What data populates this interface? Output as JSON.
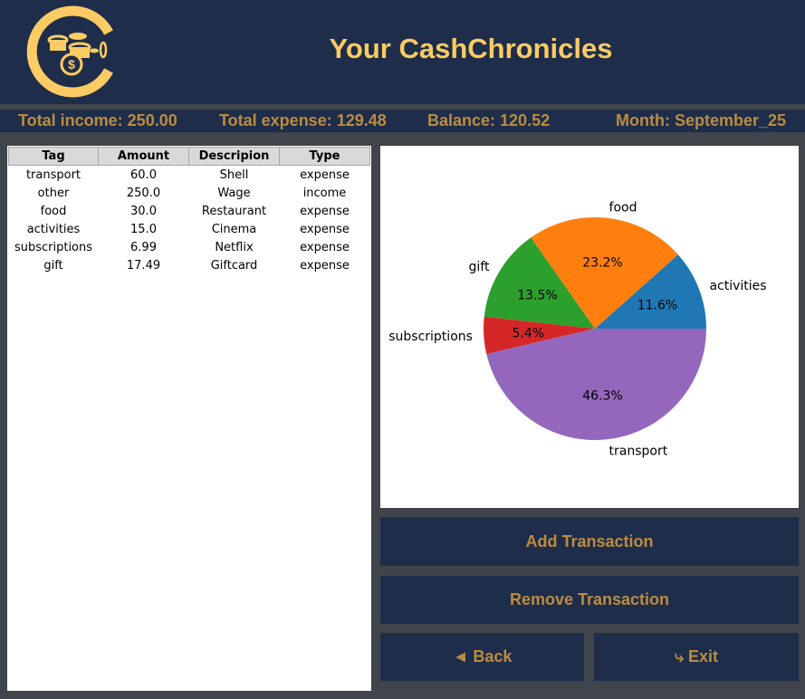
{
  "header": {
    "title": "Your CashChronicles",
    "logo_icon": "coins-dollar-logo"
  },
  "stats": {
    "income": "Total income: 250.00",
    "expense": "Total expense: 129.48",
    "balance": "Balance: 120.52",
    "month": "Month: September_25"
  },
  "table": {
    "columns": [
      "Tag",
      "Amount",
      "Descripion",
      "Type"
    ],
    "rows": [
      [
        "transport",
        "60.0",
        "Shell",
        "expense"
      ],
      [
        "other",
        "250.0",
        "Wage",
        "income"
      ],
      [
        "food",
        "30.0",
        "Restaurant",
        "expense"
      ],
      [
        "activities",
        "15.0",
        "Cinema",
        "expense"
      ],
      [
        "subscriptions",
        "6.99",
        "Netflix",
        "expense"
      ],
      [
        "gift",
        "17.49",
        "Giftcard",
        "expense"
      ]
    ]
  },
  "chart_data": {
    "type": "pie",
    "labels": [
      "activities",
      "food",
      "gift",
      "subscriptions",
      "transport"
    ],
    "values": [
      15.0,
      30.0,
      17.49,
      6.99,
      60.0
    ],
    "pct_labels": [
      "11.6%",
      "23.2%",
      "13.5%",
      "5.4%",
      "46.3%"
    ],
    "colors": [
      "#1f77b4",
      "#ff7f0e",
      "#2ca02c",
      "#d62728",
      "#9467bd"
    ]
  },
  "buttons": {
    "add": "Add Transaction",
    "remove": "Remove Transaction",
    "back": "◄ Back",
    "exit": "⤷ Exit"
  },
  "colors": {
    "navy": "#1e2d4a",
    "gold": "#fccb63",
    "text_gold": "#bb8c3f",
    "background": "#40444b"
  }
}
